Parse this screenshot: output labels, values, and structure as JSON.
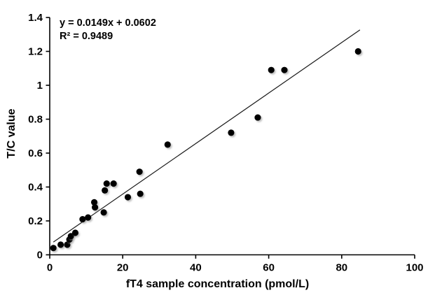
{
  "chart_data": {
    "type": "scatter",
    "title": "",
    "xlabel": "fT4 sample concentration (pmol/L)",
    "ylabel": "T/C value",
    "xlim": [
      0,
      100
    ],
    "ylim": [
      0,
      1.4
    ],
    "xticks": [
      0,
      20,
      40,
      60,
      80,
      100
    ],
    "xtick_labels": [
      "0",
      "20",
      "40",
      "60",
      "80",
      "100"
    ],
    "yticks": [
      0,
      0.2,
      0.4,
      0.6,
      0.8,
      1,
      1.2,
      1.4
    ],
    "ytick_labels": [
      "0",
      "0.2",
      "0.4",
      "0.6",
      "0.8",
      "1",
      "1.2",
      "1.4"
    ],
    "grid": false,
    "legend": false,
    "marker_color": "#000000",
    "marker_shadow_color": "#8a8a8a",
    "axis_color": "#000000",
    "line_color": "#1a1a1a",
    "points": [
      [
        1,
        0.04
      ],
      [
        3,
        0.06
      ],
      [
        4.8,
        0.06
      ],
      [
        5.4,
        0.09
      ],
      [
        5.8,
        0.11
      ],
      [
        7,
        0.13
      ],
      [
        9,
        0.21
      ],
      [
        10.5,
        0.22
      ],
      [
        12.2,
        0.31
      ],
      [
        12.4,
        0.28
      ],
      [
        14.8,
        0.25
      ],
      [
        15.1,
        0.38
      ],
      [
        15.6,
        0.42
      ],
      [
        17.5,
        0.42
      ],
      [
        21.4,
        0.34
      ],
      [
        24.6,
        0.49
      ],
      [
        24.8,
        0.36
      ],
      [
        32.3,
        0.65
      ],
      [
        49.7,
        0.72
      ],
      [
        57,
        0.81
      ],
      [
        60.7,
        1.09
      ],
      [
        64.3,
        1.09
      ],
      [
        84.5,
        1.2
      ]
    ],
    "trendline": {
      "slope": 0.0149,
      "intercept": 0.0602,
      "x_start": 1,
      "x_end": 85,
      "equation_text": "y = 0.0149x + 0.0602",
      "r2_text": "R² = 0.9489"
    }
  }
}
